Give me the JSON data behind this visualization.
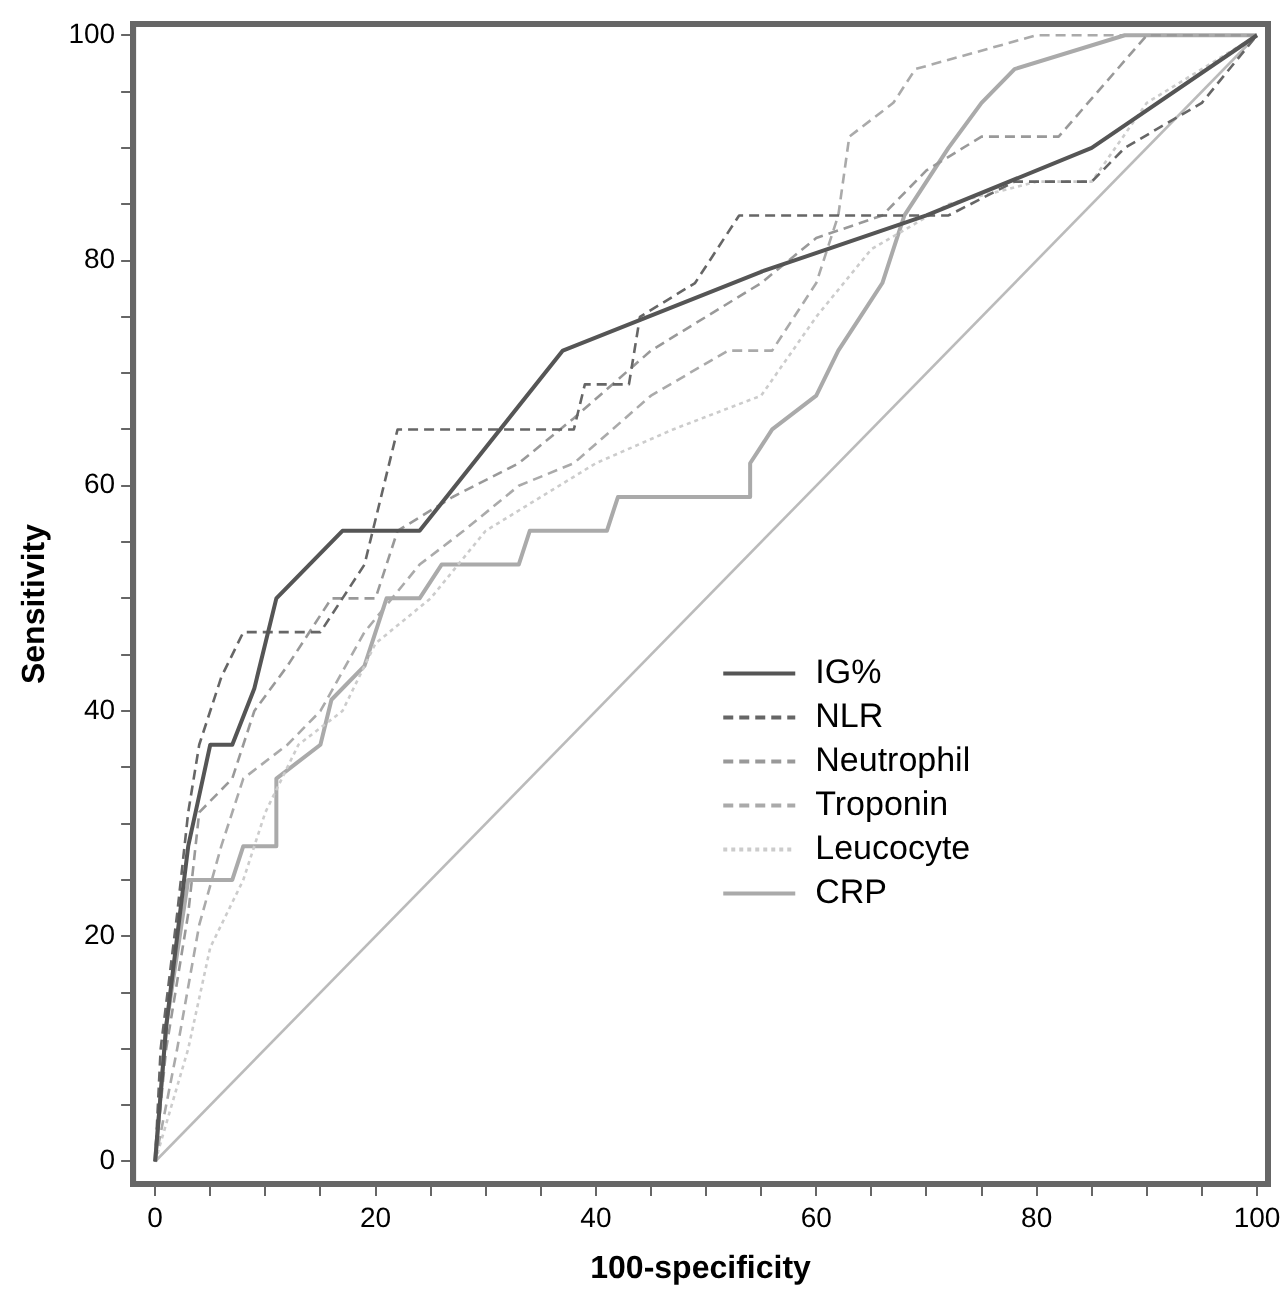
{
  "chart_data": {
    "type": "line",
    "xlabel": "100-specificity",
    "ylabel": "Sensitivity",
    "xlim": [
      -2,
      101
    ],
    "ylim": [
      -2,
      101
    ],
    "xticks": [
      0,
      {
        "value": 5,
        "label": null
      },
      {
        "value": 10,
        "label": null
      },
      {
        "value": 15,
        "label": null
      },
      20,
      {
        "value": 25,
        "label": null
      },
      {
        "value": 30,
        "label": null
      },
      {
        "value": 35,
        "label": null
      },
      40,
      {
        "value": 45,
        "label": null
      },
      {
        "value": 50,
        "label": null
      },
      {
        "value": 55,
        "label": null
      },
      60,
      {
        "value": 65,
        "label": null
      },
      {
        "value": 70,
        "label": null
      },
      {
        "value": 75,
        "label": null
      },
      80,
      {
        "value": 85,
        "label": null
      },
      {
        "value": 90,
        "label": null
      },
      {
        "value": 95,
        "label": null
      },
      100
    ],
    "yticks": [
      0,
      {
        "value": 5,
        "label": null
      },
      {
        "value": 10,
        "label": null
      },
      {
        "value": 15,
        "label": null
      },
      20,
      {
        "value": 25,
        "label": null
      },
      {
        "value": 30,
        "label": null
      },
      {
        "value": 35,
        "label": null
      },
      40,
      {
        "value": 45,
        "label": null
      },
      {
        "value": 50,
        "label": null
      },
      {
        "value": 55,
        "label": null
      },
      60,
      {
        "value": 65,
        "label": null
      },
      {
        "value": 70,
        "label": null
      },
      {
        "value": 75,
        "label": null
      },
      80,
      {
        "value": 85,
        "label": null
      },
      {
        "value": 90,
        "label": null
      },
      {
        "value": 95,
        "label": null
      },
      100
    ],
    "grid": false,
    "legend": "center",
    "marker": "none",
    "series": [
      {
        "name": "IG%",
        "color": "#555555",
        "line_style": "solid",
        "x": [
          0,
          1,
          2,
          3,
          5,
          7,
          9,
          11,
          14,
          17,
          24,
          37,
          55,
          70,
          85,
          100
        ],
        "values": [
          0,
          12,
          20,
          28,
          37,
          37,
          42,
          50,
          53,
          56,
          56,
          72,
          79,
          84,
          90,
          100
        ]
      },
      {
        "name": "NLR",
        "color": "#666666",
        "line_style": "dashed",
        "x": [
          0,
          0.5,
          2,
          3,
          4,
          6,
          8,
          15,
          17,
          19,
          22,
          38,
          39,
          43,
          44,
          49,
          53,
          72,
          78,
          85,
          88,
          95,
          100
        ],
        "values": [
          0,
          10,
          22,
          31,
          37,
          43,
          47,
          47,
          50,
          53,
          65,
          65,
          69,
          69,
          75,
          78,
          84,
          84,
          87,
          87,
          90,
          94,
          100
        ]
      },
      {
        "name": "Neutrophil",
        "color": "#999999",
        "line_style": "dashed",
        "x": [
          0,
          1,
          3,
          4,
          7,
          9,
          12,
          16,
          20,
          22,
          27,
          33,
          38,
          45,
          50,
          55,
          60,
          66,
          70,
          75,
          82,
          90,
          100
        ],
        "values": [
          0,
          10,
          22,
          31,
          34,
          40,
          44,
          50,
          50,
          56,
          59,
          62,
          66,
          72,
          75,
          78,
          82,
          84,
          88,
          91,
          91,
          100,
          100
        ]
      },
      {
        "name": "Troponin",
        "color": "#aaaaaa",
        "line_style": "dashed",
        "x": [
          0,
          2,
          4,
          6,
          8,
          12,
          15,
          19,
          24,
          28,
          33,
          38,
          45,
          52,
          56,
          60,
          62,
          63,
          67,
          69,
          80,
          100
        ],
        "values": [
          0,
          10,
          21,
          28,
          34,
          37,
          40,
          47,
          53,
          56,
          60,
          62,
          68,
          72,
          72,
          78,
          84,
          91,
          94,
          97,
          100,
          100
        ]
      },
      {
        "name": "Leucocyte",
        "color": "#cccccc",
        "line_style": "dotted",
        "x": [
          0,
          3,
          5,
          8,
          10,
          13,
          17,
          20,
          25,
          30,
          35,
          40,
          47,
          55,
          60,
          65,
          72,
          80,
          85,
          90,
          100
        ],
        "values": [
          0,
          10,
          19,
          25,
          31,
          37,
          40,
          46,
          50,
          56,
          59,
          62,
          65,
          68,
          75,
          81,
          85,
          87,
          87,
          94,
          100
        ]
      },
      {
        "name": "CRP",
        "color": "#aaaaaa",
        "line_style": "solid",
        "x": [
          0,
          1,
          3,
          7,
          8,
          11,
          11,
          15,
          16,
          19,
          21,
          24,
          26,
          33,
          34,
          41,
          42,
          54,
          54,
          56,
          60,
          62,
          64,
          66,
          68,
          72,
          75,
          78,
          88,
          100
        ],
        "values": [
          0,
          12,
          25,
          25,
          28,
          28,
          34,
          37,
          41,
          44,
          50,
          50,
          53,
          53,
          56,
          56,
          59,
          59,
          62,
          65,
          68,
          72,
          75,
          78,
          84,
          90,
          94,
          97,
          100,
          100
        ]
      },
      {
        "color": "#bbbbbb",
        "line_style": "solid",
        "x": [
          0,
          100
        ],
        "values": [
          0,
          100
        ]
      }
    ]
  }
}
